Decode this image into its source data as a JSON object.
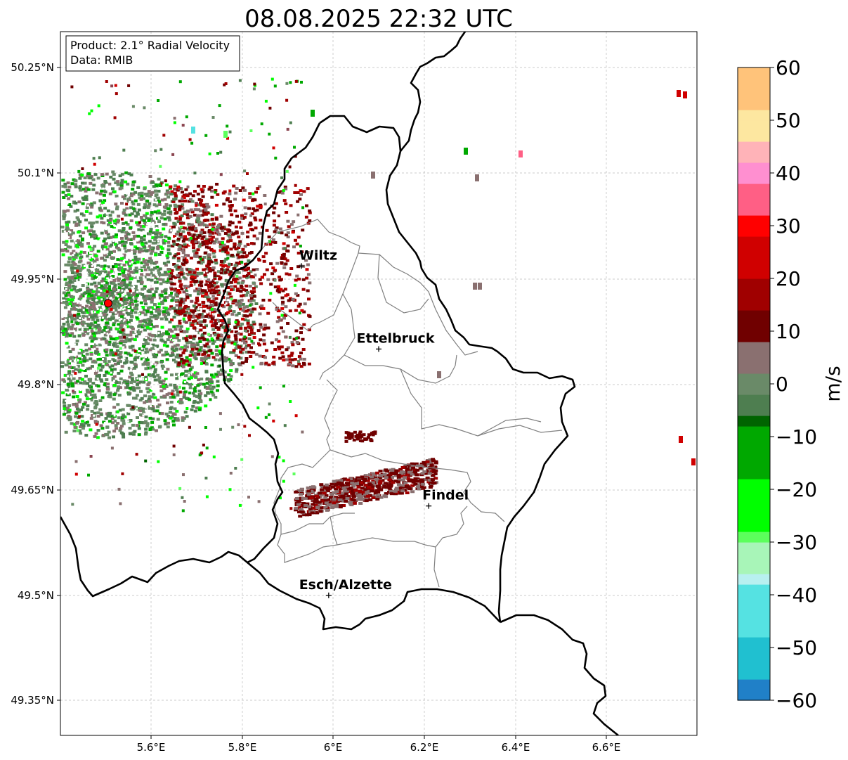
{
  "title": "08.08.2025 22:32 UTC",
  "info_box": {
    "product_line": "Product: 2.1° Radial Velocity",
    "data_line": "Data: RMIB"
  },
  "x_ticks": [
    "5.6°E",
    "5.8°E",
    "6°E",
    "6.2°E",
    "6.4°E",
    "6.6°E"
  ],
  "y_ticks": [
    "50.25°N",
    "50.1°N",
    "49.95°N",
    "49.8°N",
    "49.65°N",
    "49.5°N",
    "49.35°N"
  ],
  "map_extent": {
    "lon_min": 5.4,
    "lon_max": 6.8,
    "lat_min": 49.3,
    "lat_max": 50.3
  },
  "radar_site": {
    "lon": 5.505,
    "lat": 49.914,
    "color": "#ff0000"
  },
  "cities": [
    {
      "name": "Wiltz",
      "lon": 5.93,
      "lat": 49.967
    },
    {
      "name": "Ettelbruck",
      "lon": 6.1,
      "lat": 49.849
    },
    {
      "name": "Findel",
      "lon": 6.21,
      "lat": 49.626
    },
    {
      "name": "Esch/Alzette",
      "lon": 5.99,
      "lat": 49.499
    }
  ],
  "colorbar": {
    "label": "m/s",
    "min": -60,
    "max": 60,
    "ticks": [
      "60",
      "50",
      "40",
      "30",
      "20",
      "10",
      "0",
      "−10",
      "−20",
      "−30",
      "−40",
      "−50",
      "−60"
    ],
    "stops": [
      {
        "v": 60,
        "color": "#ff9a55"
      },
      {
        "v": 52,
        "color": "#ffc37a"
      },
      {
        "v": 46,
        "color": "#fde7a0"
      },
      {
        "v": 43,
        "color": "#ffb3b8"
      },
      {
        "v": 39,
        "color": "#ff8fd0"
      },
      {
        "v": 33,
        "color": "#ff5f85"
      },
      {
        "v": 28,
        "color": "#ff0000"
      },
      {
        "v": 20,
        "color": "#d00000"
      },
      {
        "v": 14,
        "color": "#a00000"
      },
      {
        "v": 9,
        "color": "#700000"
      },
      {
        "v": 8,
        "color": "#8b4550"
      },
      {
        "v": 3,
        "color": "#8a7070"
      },
      {
        "v": -2,
        "color": "#6a8a68"
      },
      {
        "v": -6,
        "color": "#4e7e50"
      },
      {
        "v": -7,
        "color": "#006400"
      },
      {
        "v": -18,
        "color": "#00a800"
      },
      {
        "v": -27,
        "color": "#00ff00"
      },
      {
        "v": -30,
        "color": "#5cff5c"
      },
      {
        "v": -35,
        "color": "#a8f5b8"
      },
      {
        "v": -38,
        "color": "#b8f0f0"
      },
      {
        "v": -48,
        "color": "#55e2e2"
      },
      {
        "v": -55,
        "color": "#20c0d0"
      },
      {
        "v": -60,
        "color": "#2080c8"
      }
    ]
  },
  "colors": {
    "border": "#000000",
    "canton": "#808080",
    "grid": "#bbbbbb"
  }
}
